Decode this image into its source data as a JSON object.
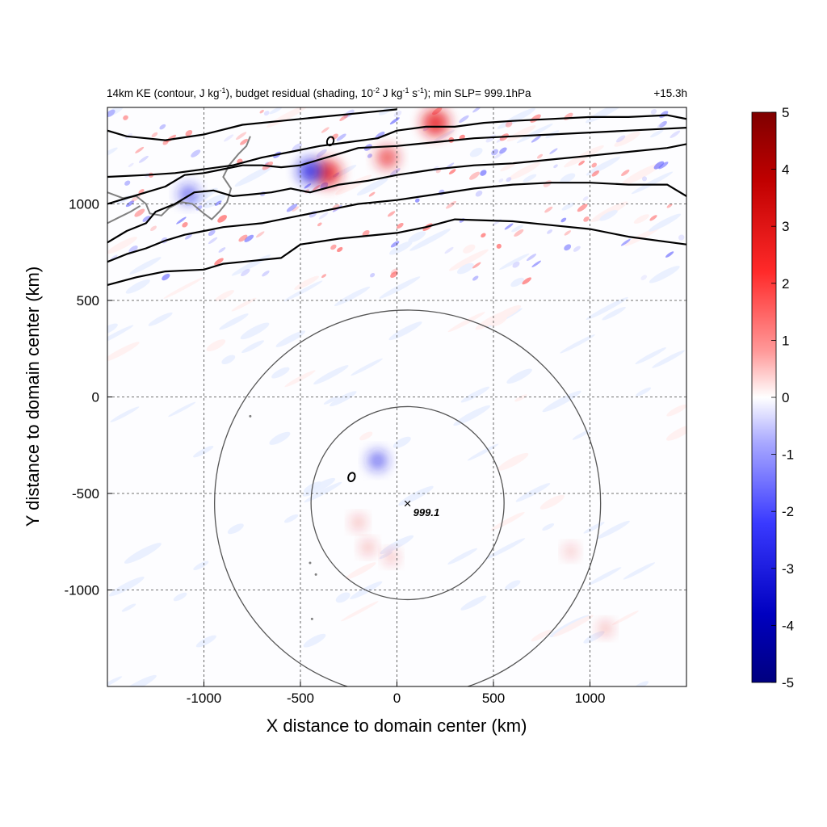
{
  "title": {
    "p1": "14km KE (contour, J kg",
    "s1": "-1",
    "p2": "), budget residual (shading, 10",
    "s2": "-2",
    "p3": " J kg",
    "s3": "-1",
    "p4": " s",
    "s4": "-1",
    "p5": "); min SLP= 999.1hPa",
    "right": "+15.3h"
  },
  "colors": {
    "pos_max": "#7f0000",
    "pos": "#e8141a",
    "neg": "#1414e8",
    "neg_max": "#00007f",
    "zero": "#ffffff",
    "contour": "#000000",
    "ring": "#555555",
    "coast": "#808080"
  },
  "chart_data": {
    "type": "heatmap",
    "xlabel": "X distance to domain center (km)",
    "ylabel": "Y distance to domain center (km)",
    "xlim": [
      -1500,
      1500
    ],
    "ylim": [
      -1500,
      1500
    ],
    "xticks": [
      -1000,
      -500,
      0,
      500,
      1000
    ],
    "yticks": [
      1000,
      500,
      0,
      -500,
      -1000
    ],
    "grid": "dashed",
    "colorbar": {
      "range": [
        -5,
        5
      ],
      "ticks": [
        5,
        4,
        3,
        2,
        1,
        0,
        -1,
        -2,
        -3,
        -4,
        -5
      ]
    },
    "center_marker": {
      "symbol": "×",
      "x": 55,
      "y": -550,
      "label": "999.1"
    },
    "rings_km": [
      {
        "x": 55,
        "y": -550,
        "radius": 500
      },
      {
        "x": 55,
        "y": -550,
        "radius": 1000
      }
    ],
    "ke_contours": [
      [
        [
          -1500,
          580
        ],
        [
          -1350,
          620
        ],
        [
          -1200,
          650
        ],
        [
          -1000,
          660
        ],
        [
          -900,
          690
        ],
        [
          -800,
          700
        ],
        [
          -600,
          720
        ],
        [
          -500,
          790
        ],
        [
          -300,
          820
        ],
        [
          0,
          850
        ],
        [
          150,
          880
        ],
        [
          300,
          920
        ],
        [
          600,
          910
        ],
        [
          800,
          890
        ],
        [
          1000,
          870
        ],
        [
          1200,
          830
        ],
        [
          1500,
          790
        ]
      ],
      [
        [
          -1500,
          700
        ],
        [
          -1400,
          740
        ],
        [
          -1300,
          770
        ],
        [
          -1200,
          810
        ],
        [
          -1100,
          840
        ],
        [
          -1000,
          860
        ],
        [
          -900,
          880
        ],
        [
          -800,
          890
        ],
        [
          -700,
          900
        ],
        [
          -600,
          920
        ],
        [
          -500,
          940
        ],
        [
          -400,
          960
        ],
        [
          -300,
          980
        ],
        [
          -200,
          1000
        ],
        [
          0,
          1020
        ],
        [
          200,
          1050
        ],
        [
          400,
          1080
        ],
        [
          600,
          1100
        ],
        [
          800,
          1110
        ],
        [
          1000,
          1110
        ],
        [
          1200,
          1100
        ],
        [
          1400,
          1100
        ],
        [
          1500,
          1040
        ]
      ],
      [
        [
          -1500,
          800
        ],
        [
          -1400,
          860
        ],
        [
          -1300,
          900
        ],
        [
          -1250,
          960
        ],
        [
          -1150,
          1000
        ],
        [
          -1050,
          1060
        ],
        [
          -950,
          1070
        ],
        [
          -850,
          1040
        ],
        [
          -750,
          1050
        ],
        [
          -650,
          1060
        ],
        [
          -550,
          1080
        ],
        [
          -450,
          1060
        ],
        [
          -300,
          1100
        ],
        [
          -150,
          1120
        ],
        [
          0,
          1150
        ],
        [
          200,
          1180
        ],
        [
          400,
          1200
        ],
        [
          600,
          1210
        ],
        [
          800,
          1230
        ],
        [
          1000,
          1250
        ],
        [
          1200,
          1270
        ],
        [
          1400,
          1290
        ],
        [
          1500,
          1310
        ]
      ],
      [
        [
          -1500,
          1000
        ],
        [
          -1400,
          1030
        ],
        [
          -1300,
          1060
        ],
        [
          -1200,
          1090
        ],
        [
          -1100,
          1150
        ],
        [
          -1000,
          1160
        ],
        [
          -900,
          1180
        ],
        [
          -800,
          1200
        ],
        [
          -700,
          1200
        ],
        [
          -600,
          1190
        ],
        [
          -500,
          1200
        ],
        [
          -400,
          1230
        ],
        [
          -300,
          1260
        ],
        [
          -200,
          1290
        ],
        [
          0,
          1300
        ],
        [
          200,
          1320
        ],
        [
          400,
          1340
        ],
        [
          600,
          1350
        ],
        [
          800,
          1360
        ],
        [
          1000,
          1370
        ],
        [
          1200,
          1380
        ],
        [
          1400,
          1390
        ],
        [
          1500,
          1395
        ]
      ],
      [
        [
          -1500,
          1140
        ],
        [
          -1300,
          1150
        ],
        [
          -1150,
          1160
        ],
        [
          -1000,
          1180
        ],
        [
          -850,
          1200
        ],
        [
          -700,
          1240
        ],
        [
          -550,
          1270
        ],
        [
          -400,
          1300
        ],
        [
          -250,
          1320
        ],
        [
          -100,
          1340
        ],
        [
          0,
          1380
        ],
        [
          150,
          1400
        ],
        [
          300,
          1400
        ],
        [
          450,
          1420
        ],
        [
          600,
          1430
        ],
        [
          800,
          1440
        ],
        [
          1000,
          1450
        ],
        [
          1200,
          1450
        ],
        [
          1400,
          1460
        ],
        [
          1500,
          1440
        ]
      ],
      [
        [
          -1500,
          1380
        ],
        [
          -1400,
          1350
        ],
        [
          -1300,
          1340
        ],
        [
          -1200,
          1330
        ],
        [
          -1000,
          1360
        ],
        [
          -800,
          1410
        ],
        [
          -600,
          1430
        ],
        [
          -400,
          1450
        ],
        [
          -200,
          1470
        ],
        [
          0,
          1490
        ]
      ]
    ],
    "small_ke_contours": [
      {
        "x": -235,
        "y": -415
      },
      {
        "x": -345,
        "y": 1325
      }
    ],
    "shading_features": [
      {
        "sign": "pos",
        "x": 200,
        "y": 1420,
        "value": 3.5
      },
      {
        "sign": "pos",
        "x": -360,
        "y": 1160,
        "value": 3.5
      },
      {
        "sign": "neg",
        "x": -450,
        "y": 1170,
        "value": -3
      },
      {
        "sign": "neg",
        "x": -1080,
        "y": 1050,
        "value": -2
      },
      {
        "sign": "pos",
        "x": -50,
        "y": 1240,
        "value": 2.5
      },
      {
        "sign": "neg",
        "x": -100,
        "y": -330,
        "value": -2
      },
      {
        "sign": "pos",
        "x": -200,
        "y": -650,
        "value": 0.8
      },
      {
        "sign": "pos",
        "x": -150,
        "y": -780,
        "value": 0.8
      },
      {
        "sign": "pos",
        "x": -30,
        "y": -830,
        "value": 0.7
      },
      {
        "sign": "pos",
        "x": 900,
        "y": -800,
        "value": 0.6
      },
      {
        "sign": "pos",
        "x": 1080,
        "y": -1200,
        "value": 0.8
      }
    ]
  }
}
